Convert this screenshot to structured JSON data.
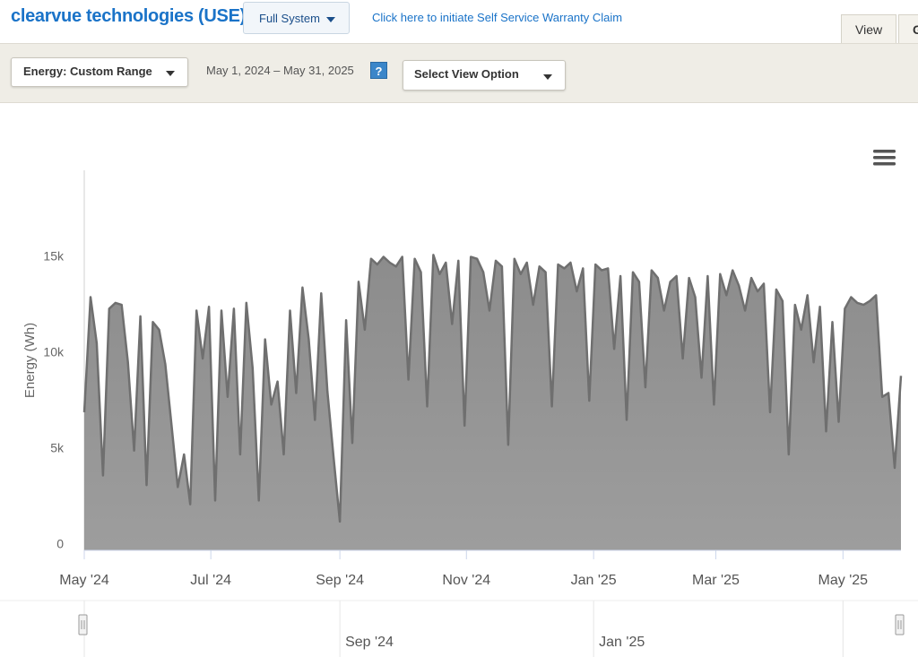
{
  "header": {
    "title": "clearvue technologies (USE)",
    "system_button": "Full System",
    "warranty_link": "Click here to initiate Self Service Warranty Claim",
    "tabs": [
      "View",
      "G"
    ]
  },
  "toolbar": {
    "energy_select": "Energy: Custom Range",
    "date_range": "May 1, 2024 – May 31, 2025",
    "help": "?",
    "view_select": "Select View Option"
  },
  "chart_data": {
    "type": "area",
    "y_label": "Energy (Wh)",
    "color": "#8c8c8c",
    "line_color": "#6f6f6f",
    "values": [
      7200,
      13200,
      10800,
      3900,
      12600,
      12900,
      12800,
      9800,
      5200,
      12200,
      3400,
      11900,
      11500,
      9700,
      6500,
      3300,
      5000,
      2400,
      12500,
      10000,
      12700,
      2600,
      12500,
      8000,
      12600,
      5000,
      12900,
      9500,
      2600,
      11000,
      7600,
      8800,
      5000,
      12500,
      8200,
      13700,
      11000,
      6800,
      13400,
      8300,
      4800,
      1500,
      12000,
      5600,
      14000,
      11500,
      15200,
      14900,
      15300,
      15000,
      14800,
      15300,
      8900,
      15200,
      14500,
      7500,
      15400,
      14400,
      15000,
      11800,
      15100,
      6500,
      15300,
      15200,
      14500,
      12500,
      15100,
      14800,
      5500,
      15200,
      14400,
      15000,
      12800,
      14800,
      14500,
      7500,
      14900,
      14700,
      15000,
      13500,
      14700,
      7800,
      14900,
      14600,
      14700,
      10500,
      14300,
      6800,
      14500,
      14000,
      8500,
      14600,
      14200,
      12500,
      14000,
      14300,
      10000,
      14200,
      13200,
      9000,
      14300,
      7600,
      14400,
      13300,
      14600,
      13800,
      12500,
      14200,
      13500,
      13900,
      7200,
      13600,
      13000,
      5000,
      12800,
      11500,
      13300,
      9800,
      12700,
      6200,
      11900,
      6700,
      12600,
      13200,
      12900,
      12800,
      13000,
      13300,
      8000,
      8200,
      4300,
      9100
    ],
    "xlim": [
      0,
      131
    ],
    "xticks": [
      {
        "value": 0,
        "label": "May '24"
      },
      {
        "value": 20.3,
        "label": "Jul '24"
      },
      {
        "value": 41,
        "label": "Sep '24"
      },
      {
        "value": 61.3,
        "label": "Nov '24"
      },
      {
        "value": 81.7,
        "label": "Jan '25"
      },
      {
        "value": 101.3,
        "label": "Mar '25"
      },
      {
        "value": 121.7,
        "label": "May '25"
      }
    ],
    "ylim": [
      0,
      20000
    ],
    "yticks": [
      0,
      {
        "value": 5000,
        "label": "5k"
      },
      {
        "value": 10000,
        "label": "10k"
      },
      {
        "value": 15000,
        "label": "15k"
      }
    ],
    "navigator_xticks": [
      {
        "value": 0,
        "label": "May '24"
      },
      {
        "value": 41,
        "label": "Sep '24"
      },
      {
        "value": 81.7,
        "label": "Jan '25"
      },
      {
        "value": 121.7,
        "label": ""
      }
    ]
  }
}
